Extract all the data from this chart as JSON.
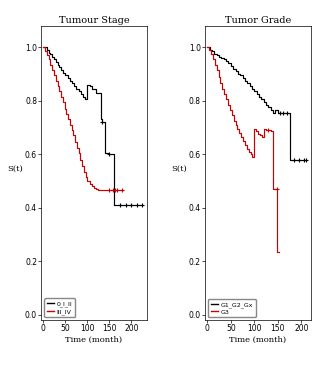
{
  "left_title": "Tumour Stage",
  "right_title": "Tumor Grade",
  "xlabel": "Time (month)",
  "ylabel_left": "S(t)",
  "ylabel_right": "S(t)",
  "ylim": [
    -0.02,
    1.08
  ],
  "xlim_left": [
    -5,
    235
  ],
  "xlim_right": [
    -5,
    220
  ],
  "xticks_left": [
    0,
    50,
    100,
    150,
    200
  ],
  "xticks_right": [
    0,
    50,
    100,
    150,
    200
  ],
  "yticks": [
    0.0,
    0.2,
    0.4,
    0.6,
    0.8,
    1.0
  ],
  "legend_left": [
    "0_I_II",
    "III_IV"
  ],
  "legend_right": [
    "G1_G2_Gx",
    "G3"
  ],
  "black_color": "#000000",
  "red_color": "#cc0000",
  "stage_black_t": [
    0,
    8,
    12,
    16,
    20,
    24,
    28,
    32,
    36,
    40,
    45,
    50,
    55,
    60,
    65,
    70,
    75,
    80,
    85,
    90,
    95,
    100,
    105,
    110,
    120,
    130,
    133,
    140,
    148,
    160,
    225
  ],
  "stage_black_s": [
    1.0,
    0.99,
    0.98,
    0.975,
    0.965,
    0.955,
    0.945,
    0.935,
    0.925,
    0.915,
    0.905,
    0.895,
    0.885,
    0.875,
    0.865,
    0.855,
    0.845,
    0.835,
    0.825,
    0.815,
    0.805,
    0.86,
    0.855,
    0.845,
    0.83,
    0.73,
    0.72,
    0.605,
    0.6,
    0.41,
    0.41
  ],
  "stage_black_censors_t": [
    133,
    148,
    175,
    188,
    200,
    212,
    225
  ],
  "stage_black_censors_s": [
    0.72,
    0.6,
    0.41,
    0.41,
    0.41,
    0.41,
    0.41
  ],
  "stage_red_t": [
    0,
    4,
    8,
    12,
    16,
    20,
    24,
    28,
    32,
    36,
    40,
    44,
    48,
    52,
    56,
    60,
    64,
    68,
    72,
    76,
    80,
    84,
    88,
    92,
    96,
    100,
    105,
    110,
    115,
    120,
    125,
    130,
    135,
    140,
    145,
    150,
    180
  ],
  "stage_red_s": [
    1.0,
    0.985,
    0.97,
    0.955,
    0.935,
    0.915,
    0.895,
    0.875,
    0.855,
    0.835,
    0.815,
    0.795,
    0.77,
    0.75,
    0.73,
    0.71,
    0.69,
    0.67,
    0.645,
    0.625,
    0.605,
    0.58,
    0.555,
    0.535,
    0.515,
    0.5,
    0.49,
    0.48,
    0.475,
    0.47,
    0.465,
    0.465,
    0.465,
    0.465,
    0.465,
    0.465,
    0.465
  ],
  "stage_red_censors_t": [
    150,
    158,
    162,
    168,
    178
  ],
  "stage_red_censors_s": [
    0.465,
    0.465,
    0.465,
    0.465,
    0.465
  ],
  "grade_black_t": [
    0,
    5,
    10,
    15,
    20,
    25,
    30,
    35,
    40,
    45,
    50,
    55,
    60,
    65,
    70,
    75,
    80,
    85,
    90,
    95,
    100,
    105,
    110,
    115,
    120,
    125,
    130,
    135,
    140,
    145,
    150,
    155,
    160,
    165,
    170,
    175,
    210
  ],
  "grade_black_s": [
    1.0,
    0.99,
    0.985,
    0.975,
    0.97,
    0.965,
    0.96,
    0.955,
    0.95,
    0.94,
    0.93,
    0.92,
    0.91,
    0.9,
    0.895,
    0.885,
    0.875,
    0.865,
    0.855,
    0.845,
    0.835,
    0.825,
    0.815,
    0.805,
    0.795,
    0.785,
    0.775,
    0.765,
    0.755,
    0.765,
    0.755,
    0.755,
    0.755,
    0.755,
    0.755,
    0.58,
    0.58
  ],
  "grade_black_censors_t": [
    155,
    162,
    170,
    185,
    196,
    205,
    210
  ],
  "grade_black_censors_s": [
    0.755,
    0.755,
    0.755,
    0.58,
    0.58,
    0.58,
    0.58
  ],
  "grade_red_t": [
    0,
    4,
    8,
    12,
    16,
    20,
    24,
    28,
    32,
    36,
    40,
    44,
    48,
    52,
    56,
    60,
    64,
    68,
    72,
    76,
    80,
    84,
    88,
    92,
    96,
    100,
    104,
    108,
    112,
    116,
    120,
    125,
    130,
    135,
    140,
    148,
    152
  ],
  "grade_red_s": [
    1.0,
    0.99,
    0.975,
    0.955,
    0.935,
    0.915,
    0.89,
    0.865,
    0.845,
    0.825,
    0.805,
    0.785,
    0.765,
    0.745,
    0.725,
    0.71,
    0.695,
    0.68,
    0.665,
    0.65,
    0.635,
    0.62,
    0.61,
    0.6,
    0.59,
    0.695,
    0.685,
    0.675,
    0.67,
    0.665,
    0.695,
    0.69,
    0.69,
    0.685,
    0.47,
    0.235,
    0.235
  ],
  "grade_red_censors_t": [
    130,
    148
  ],
  "grade_red_censors_s": [
    0.69,
    0.47
  ]
}
